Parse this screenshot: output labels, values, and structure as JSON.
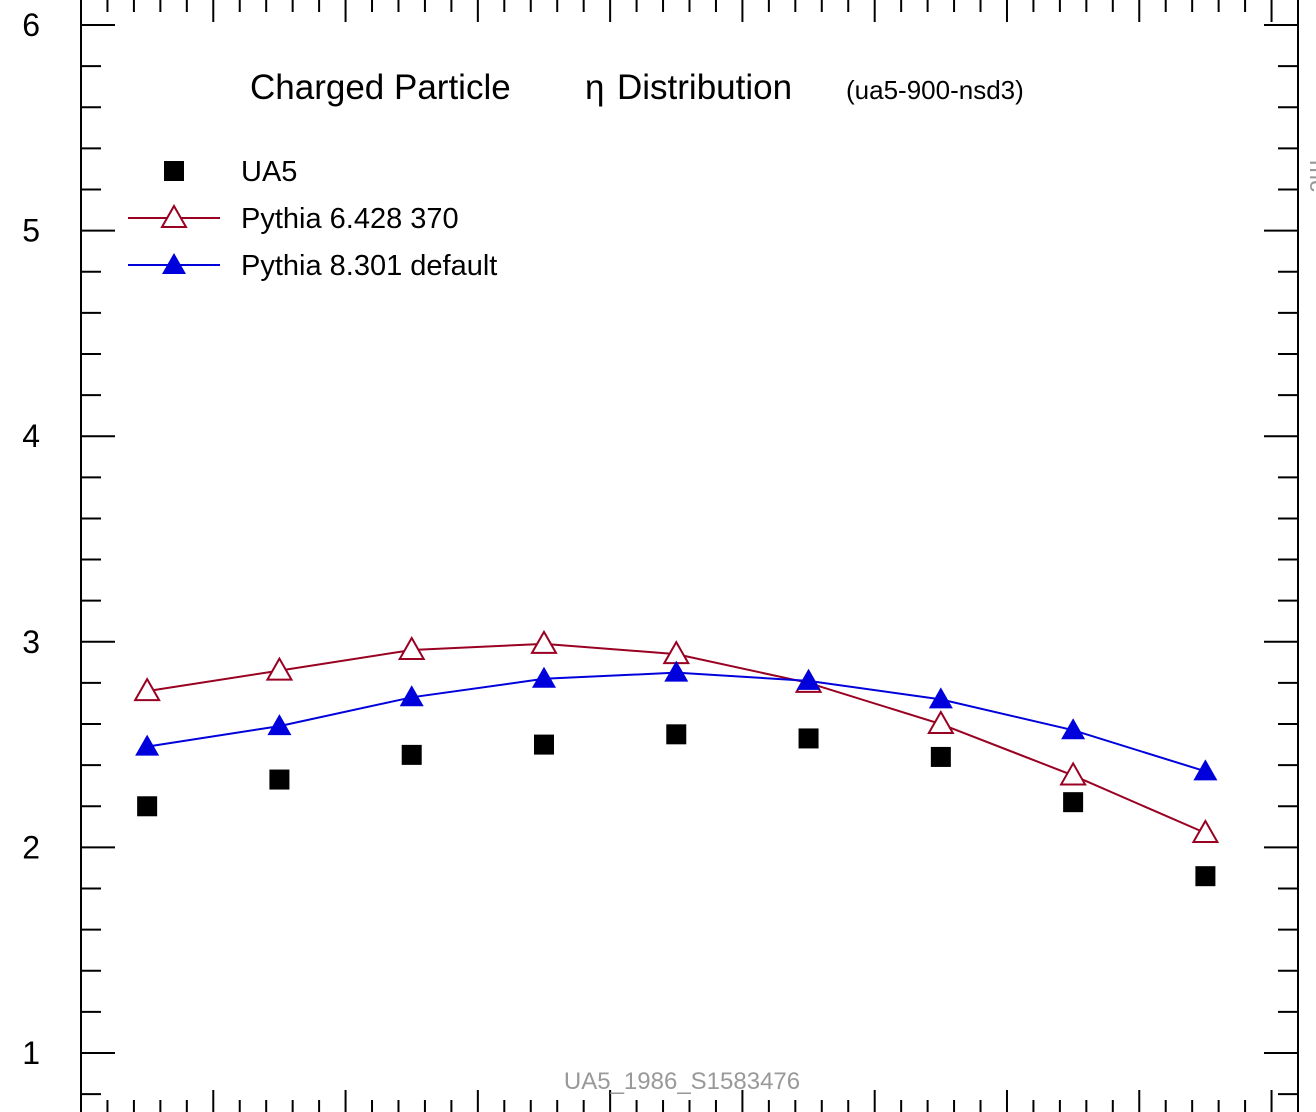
{
  "chart_data": {
    "type": "line",
    "title": "Charged Particle",
    "title_symbol": "η",
    "title_suffix": "Distribution",
    "subtitle": "(ua5-900-nsd3)",
    "watermark": "UA5_1986_S1583476",
    "side_label": "mc",
    "xlabel": "",
    "ylabel": "",
    "x": [
      0.25,
      0.75,
      1.25,
      1.75,
      2.25,
      2.75,
      3.25,
      3.75,
      4.25
    ],
    "xlim": [
      0,
      4.6
    ],
    "ylim": [
      0.85,
      6.05
    ],
    "yticks": [
      1,
      2,
      3,
      4,
      5,
      6
    ],
    "legend_position": "top-left",
    "series": [
      {
        "name": "UA5",
        "marker": "filled-square",
        "line": false,
        "color": "#000000",
        "values": [
          2.2,
          2.33,
          2.45,
          2.5,
          2.55,
          2.53,
          2.44,
          2.22,
          1.86
        ]
      },
      {
        "name": "Pythia 6.428 370",
        "marker": "open-triangle",
        "line": true,
        "color": "#990022",
        "values": [
          2.76,
          2.86,
          2.96,
          2.99,
          2.94,
          2.8,
          2.6,
          2.35,
          2.07
        ]
      },
      {
        "name": "Pythia 8.301 default",
        "marker": "filled-triangle",
        "line": true,
        "color": "#0000dd",
        "values": [
          2.49,
          2.59,
          2.73,
          2.82,
          2.85,
          2.81,
          2.72,
          2.57,
          2.37
        ]
      }
    ]
  }
}
